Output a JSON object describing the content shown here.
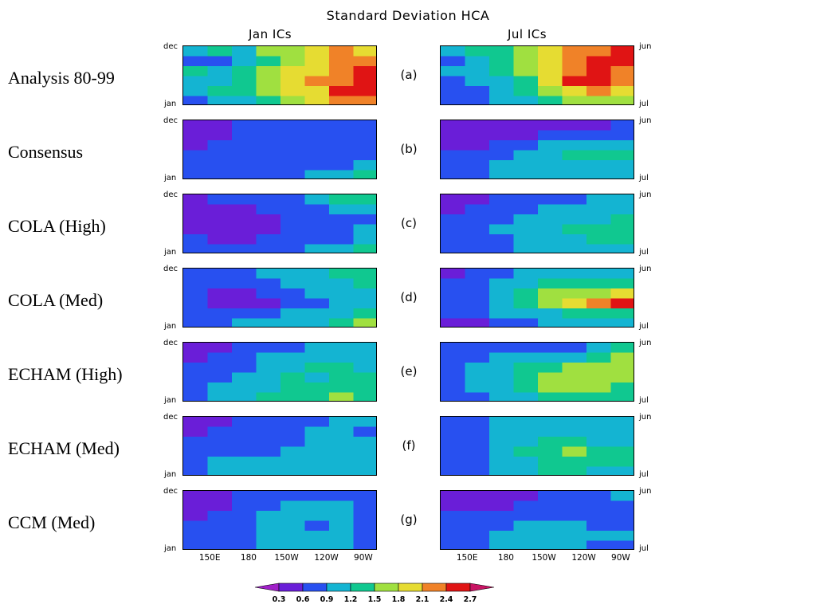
{
  "title": "Standard Deviation HCA",
  "columns": [
    "Jan ICs",
    "Jul ICs"
  ],
  "left_month_top": "dec",
  "left_month_bottom": "jan",
  "right_month_top": "jun",
  "right_month_bottom": "jul",
  "rows": [
    {
      "label": "Analysis 80-99",
      "tag": "(a)"
    },
    {
      "label": "Consensus",
      "tag": "(b)"
    },
    {
      "label": "COLA (High)",
      "tag": "(c)"
    },
    {
      "label": "COLA (Med)",
      "tag": "(d)"
    },
    {
      "label": "ECHAM (High)",
      "tag": "(e)"
    },
    {
      "label": "ECHAM (Med)",
      "tag": "(f)"
    },
    {
      "label": "CCM (Med)",
      "tag": "(g)"
    }
  ],
  "chart_data": {
    "type": "heatmap",
    "title": "Standard Deviation HCA",
    "x_tick_labels": [
      "150E",
      "180",
      "150W",
      "120W",
      "90W"
    ],
    "colorbar": {
      "levels": [
        "0.3",
        "0.6",
        "0.9",
        "1.2",
        "1.5",
        "1.8",
        "2.1",
        "2.4",
        "2.7"
      ],
      "colors": [
        "#a020c8",
        "#6a1ed8",
        "#2850f0",
        "#14b4d2",
        "#10c890",
        "#a0e040",
        "#e6dc32",
        "#f08228",
        "#e01414",
        "#c81464"
      ]
    },
    "panels_jan": [
      [
        [
          3,
          4,
          3,
          5,
          5,
          6,
          7,
          6
        ],
        [
          2,
          2,
          3,
          4,
          5,
          6,
          7,
          7
        ],
        [
          4,
          3,
          4,
          5,
          6,
          6,
          7,
          8
        ],
        [
          3,
          3,
          4,
          5,
          6,
          7,
          7,
          8
        ],
        [
          3,
          4,
          4,
          5,
          6,
          6,
          8,
          8
        ],
        [
          2,
          3,
          3,
          4,
          5,
          6,
          7,
          7
        ]
      ],
      [
        [
          1,
          1,
          2,
          2,
          2,
          2,
          2,
          2
        ],
        [
          1,
          1,
          2,
          2,
          2,
          2,
          2,
          2
        ],
        [
          1,
          2,
          2,
          2,
          2,
          2,
          2,
          2
        ],
        [
          2,
          2,
          2,
          2,
          2,
          2,
          2,
          2
        ],
        [
          2,
          2,
          2,
          2,
          2,
          2,
          2,
          3
        ],
        [
          2,
          2,
          2,
          2,
          2,
          3,
          3,
          4
        ]
      ],
      [
        [
          1,
          2,
          2,
          2,
          2,
          3,
          4,
          4
        ],
        [
          1,
          1,
          1,
          2,
          2,
          2,
          3,
          3
        ],
        [
          1,
          1,
          1,
          1,
          2,
          2,
          2,
          2
        ],
        [
          1,
          1,
          1,
          1,
          2,
          2,
          2,
          3
        ],
        [
          2,
          1,
          1,
          2,
          2,
          2,
          2,
          3
        ],
        [
          2,
          2,
          2,
          2,
          2,
          3,
          3,
          4
        ]
      ],
      [
        [
          2,
          2,
          2,
          3,
          3,
          3,
          4,
          4
        ],
        [
          2,
          2,
          2,
          2,
          3,
          3,
          3,
          4
        ],
        [
          2,
          1,
          1,
          2,
          2,
          3,
          3,
          3
        ],
        [
          2,
          1,
          1,
          1,
          2,
          2,
          3,
          3
        ],
        [
          2,
          2,
          2,
          2,
          3,
          3,
          3,
          4
        ],
        [
          2,
          2,
          3,
          3,
          3,
          3,
          4,
          5
        ]
      ],
      [
        [
          1,
          1,
          2,
          2,
          2,
          3,
          3,
          3
        ],
        [
          1,
          2,
          2,
          3,
          3,
          3,
          3,
          3
        ],
        [
          2,
          2,
          2,
          3,
          3,
          4,
          4,
          3
        ],
        [
          2,
          2,
          3,
          3,
          4,
          3,
          4,
          4
        ],
        [
          2,
          3,
          3,
          3,
          4,
          4,
          4,
          4
        ],
        [
          2,
          3,
          3,
          4,
          4,
          4,
          5,
          4
        ]
      ],
      [
        [
          1,
          1,
          2,
          2,
          2,
          2,
          3,
          3
        ],
        [
          1,
          2,
          2,
          2,
          2,
          3,
          3,
          2
        ],
        [
          2,
          2,
          2,
          2,
          2,
          3,
          3,
          3
        ],
        [
          2,
          2,
          2,
          2,
          3,
          3,
          3,
          3
        ],
        [
          2,
          3,
          3,
          3,
          3,
          3,
          3,
          3
        ],
        [
          2,
          3,
          3,
          3,
          3,
          3,
          3,
          3
        ]
      ],
      [
        [
          1,
          1,
          2,
          2,
          2,
          2,
          2,
          2
        ],
        [
          1,
          1,
          2,
          2,
          3,
          3,
          3,
          2
        ],
        [
          1,
          2,
          2,
          3,
          3,
          3,
          3,
          2
        ],
        [
          2,
          2,
          2,
          3,
          3,
          2,
          3,
          2
        ],
        [
          2,
          2,
          2,
          3,
          3,
          3,
          3,
          2
        ],
        [
          2,
          2,
          2,
          3,
          3,
          3,
          3,
          2
        ]
      ]
    ],
    "panels_jul": [
      [
        [
          3,
          4,
          4,
          5,
          6,
          7,
          7,
          8
        ],
        [
          2,
          3,
          4,
          5,
          6,
          7,
          8,
          8
        ],
        [
          3,
          3,
          4,
          5,
          6,
          7,
          8,
          7
        ],
        [
          2,
          3,
          3,
          4,
          6,
          8,
          8,
          7
        ],
        [
          2,
          2,
          3,
          4,
          5,
          6,
          7,
          6
        ],
        [
          2,
          2,
          3,
          3,
          4,
          5,
          5,
          5
        ]
      ],
      [
        [
          1,
          1,
          1,
          1,
          1,
          1,
          1,
          2
        ],
        [
          1,
          1,
          1,
          1,
          2,
          2,
          2,
          2
        ],
        [
          1,
          1,
          2,
          2,
          3,
          3,
          3,
          3
        ],
        [
          2,
          2,
          2,
          3,
          3,
          4,
          4,
          4
        ],
        [
          2,
          2,
          3,
          3,
          3,
          3,
          3,
          3
        ],
        [
          2,
          2,
          3,
          3,
          3,
          3,
          3,
          3
        ]
      ],
      [
        [
          1,
          1,
          2,
          2,
          2,
          2,
          3,
          3
        ],
        [
          1,
          2,
          2,
          2,
          3,
          3,
          3,
          3
        ],
        [
          2,
          2,
          2,
          3,
          3,
          3,
          3,
          4
        ],
        [
          2,
          2,
          3,
          3,
          3,
          4,
          4,
          4
        ],
        [
          2,
          2,
          2,
          3,
          3,
          3,
          4,
          4
        ],
        [
          2,
          2,
          2,
          3,
          3,
          3,
          3,
          3
        ]
      ],
      [
        [
          1,
          2,
          2,
          3,
          3,
          3,
          3,
          3
        ],
        [
          2,
          2,
          3,
          3,
          4,
          4,
          4,
          4
        ],
        [
          2,
          2,
          3,
          4,
          5,
          5,
          5,
          6
        ],
        [
          2,
          2,
          3,
          4,
          5,
          6,
          7,
          8
        ],
        [
          2,
          2,
          3,
          3,
          3,
          4,
          4,
          4
        ],
        [
          1,
          1,
          2,
          2,
          3,
          3,
          3,
          3
        ]
      ],
      [
        [
          2,
          2,
          2,
          2,
          2,
          2,
          3,
          4
        ],
        [
          2,
          2,
          3,
          3,
          3,
          3,
          4,
          5
        ],
        [
          2,
          3,
          3,
          4,
          4,
          5,
          5,
          5
        ],
        [
          2,
          3,
          3,
          4,
          5,
          5,
          5,
          5
        ],
        [
          2,
          3,
          3,
          4,
          5,
          5,
          5,
          4
        ],
        [
          2,
          2,
          3,
          3,
          4,
          4,
          4,
          4
        ]
      ],
      [
        [
          2,
          2,
          3,
          3,
          3,
          3,
          3,
          3
        ],
        [
          2,
          2,
          3,
          3,
          3,
          3,
          3,
          3
        ],
        [
          2,
          2,
          3,
          3,
          4,
          4,
          3,
          3
        ],
        [
          2,
          2,
          3,
          4,
          4,
          5,
          4,
          4
        ],
        [
          2,
          2,
          3,
          3,
          4,
          4,
          4,
          4
        ],
        [
          2,
          2,
          3,
          3,
          4,
          4,
          3,
          3
        ]
      ],
      [
        [
          1,
          1,
          1,
          1,
          2,
          2,
          2,
          3
        ],
        [
          1,
          1,
          1,
          2,
          2,
          2,
          2,
          2
        ],
        [
          2,
          2,
          2,
          2,
          2,
          2,
          2,
          2
        ],
        [
          2,
          2,
          2,
          3,
          3,
          3,
          2,
          2
        ],
        [
          2,
          2,
          3,
          3,
          3,
          3,
          3,
          3
        ],
        [
          2,
          2,
          3,
          3,
          3,
          3,
          2,
          2
        ]
      ]
    ]
  }
}
